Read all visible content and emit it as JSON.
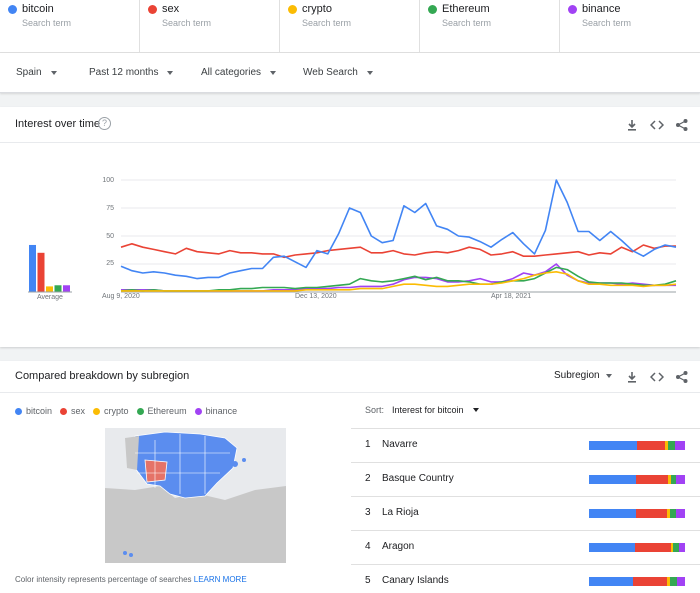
{
  "terms": [
    {
      "name": "bitcoin",
      "placeholder": "Search term",
      "color": "#4285f4"
    },
    {
      "name": "sex",
      "placeholder": "Search term",
      "color": "#ea4335"
    },
    {
      "name": "crypto",
      "placeholder": "Search term",
      "color": "#fbbc04"
    },
    {
      "name": "Ethereum",
      "placeholder": "Search term",
      "color": "#34a853"
    },
    {
      "name": "binance",
      "placeholder": "Search term",
      "color": "#a142f4"
    }
  ],
  "filters": {
    "region": "Spain",
    "time": "Past 12 months",
    "category": "All categories",
    "search_type": "Web Search"
  },
  "interest": {
    "title": "Interest over time",
    "average_label": "Average",
    "chart_data": {
      "type": "line",
      "x_ticks": [
        "Aug 9, 2020",
        "Dec 13, 2020",
        "Apr 18, 2021"
      ],
      "y_ticks": [
        "100",
        "75",
        "50",
        "25"
      ],
      "ylim": [
        0,
        100
      ],
      "averages": [
        {
          "name": "bitcoin",
          "value": 42
        },
        {
          "name": "sex",
          "value": 35
        },
        {
          "name": "crypto",
          "value": 5
        },
        {
          "name": "Ethereum",
          "value": 6
        },
        {
          "name": "binance",
          "value": 6
        }
      ],
      "series": [
        {
          "name": "bitcoin",
          "color": "#4285f4",
          "values": [
            23,
            19,
            17,
            18,
            17,
            15,
            14,
            12,
            13,
            13,
            17,
            19,
            21,
            21,
            31,
            32,
            27,
            22,
            37,
            34,
            52,
            75,
            71,
            50,
            44,
            46,
            77,
            71,
            79,
            59,
            56,
            50,
            49,
            45,
            40,
            47,
            53,
            43,
            34,
            55,
            100,
            80,
            54,
            54,
            46,
            54,
            46,
            37,
            32,
            38,
            42,
            40
          ]
        },
        {
          "name": "sex",
          "color": "#ea4335",
          "values": [
            40,
            43,
            40,
            38,
            36,
            34,
            39,
            36,
            35,
            34,
            37,
            35,
            35,
            34,
            34,
            31,
            33,
            34,
            35,
            37,
            38,
            39,
            40,
            35,
            35,
            37,
            34,
            33,
            35,
            36,
            35,
            37,
            40,
            38,
            33,
            34,
            36,
            32,
            32,
            33,
            34,
            35,
            36,
            33,
            35,
            34,
            40,
            36,
            42,
            39,
            41,
            41
          ]
        },
        {
          "name": "crypto",
          "color": "#fbbc04",
          "values": [
            1,
            1,
            1,
            1,
            1,
            1,
            1,
            1,
            1,
            1,
            1,
            1,
            1,
            1,
            1,
            1,
            1,
            2,
            2,
            2,
            2,
            2,
            3,
            3,
            3,
            5,
            7,
            7,
            6,
            5,
            5,
            6,
            7,
            7,
            7,
            8,
            10,
            12,
            15,
            17,
            18,
            16,
            10,
            7,
            7,
            6,
            6,
            6,
            5,
            6,
            6,
            7
          ]
        },
        {
          "name": "Ethereum",
          "color": "#34a853",
          "values": [
            1,
            2,
            1,
            2,
            1,
            1,
            1,
            1,
            1,
            2,
            2,
            3,
            3,
            4,
            4,
            4,
            3,
            4,
            4,
            5,
            6,
            7,
            12,
            10,
            9,
            10,
            12,
            14,
            11,
            13,
            10,
            10,
            9,
            7,
            7,
            9,
            10,
            10,
            12,
            17,
            22,
            20,
            14,
            9,
            8,
            8,
            8,
            7,
            6,
            6,
            7,
            10
          ]
        },
        {
          "name": "binance",
          "color": "#a142f4",
          "values": [
            2,
            2,
            2,
            2,
            1,
            1,
            1,
            1,
            1,
            1,
            1,
            1,
            1,
            1,
            2,
            2,
            2,
            3,
            3,
            3,
            4,
            4,
            5,
            5,
            5,
            7,
            11,
            13,
            13,
            12,
            9,
            9,
            10,
            12,
            9,
            9,
            12,
            17,
            15,
            18,
            25,
            15,
            10,
            8,
            8,
            8,
            7,
            8,
            7,
            6,
            6,
            6
          ]
        }
      ]
    }
  },
  "breakdown": {
    "title": "Compared breakdown by subregion",
    "dropdown": "Subregion",
    "sort_label": "Sort:",
    "sort_value": "Interest for bitcoin",
    "note": "Color intensity represents percentage of searches ",
    "learn_more": "LEARN MORE",
    "rows": [
      {
        "rank": "1",
        "name": "Navarre",
        "shares": [
          50,
          29,
          3,
          8,
          10
        ]
      },
      {
        "rank": "2",
        "name": "Basque Country",
        "shares": [
          49,
          33,
          3,
          6,
          9
        ]
      },
      {
        "rank": "3",
        "name": "La Rioja",
        "shares": [
          49,
          32,
          3,
          7,
          9
        ]
      },
      {
        "rank": "4",
        "name": "Aragon",
        "shares": [
          48,
          37,
          3,
          6,
          6
        ]
      },
      {
        "rank": "5",
        "name": "Canary Islands",
        "shares": [
          46,
          35,
          3,
          8,
          8
        ]
      }
    ]
  }
}
